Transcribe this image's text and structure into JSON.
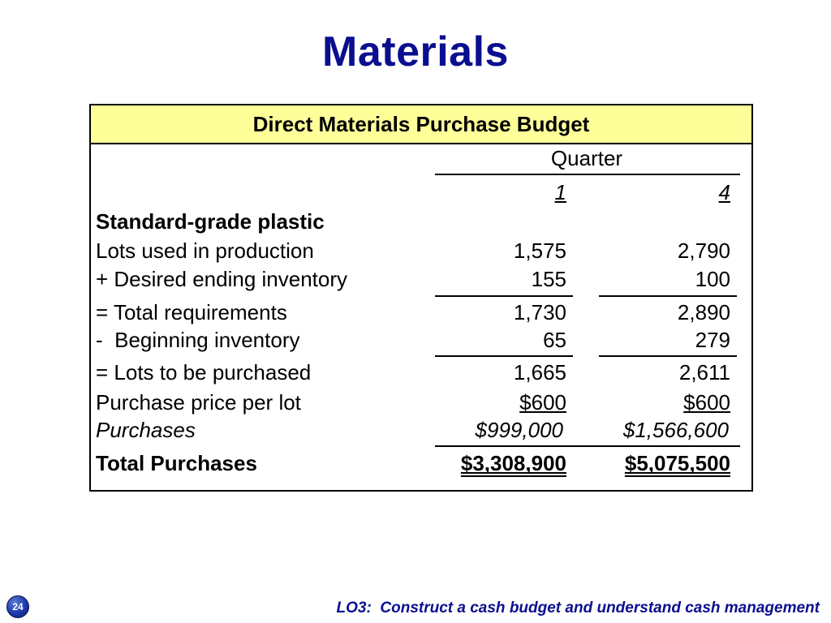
{
  "slide": {
    "title": "Materials",
    "page_number": "24",
    "footer": "LO3:  Construct a cash budget and understand cash management"
  },
  "colors": {
    "title": "#0a0f8f",
    "header_fill": "#ffff99",
    "footer": "#0a0f8f"
  },
  "budget": {
    "header": "Direct Materials Purchase Budget",
    "group_label": "Quarter",
    "columns": [
      "1",
      "4"
    ],
    "section_label": "Standard-grade plastic",
    "rows": [
      {
        "label": "Lots used in production",
        "q1": "1,575",
        "q4": "2,790"
      },
      {
        "label": "+ Desired ending inventory",
        "q1": "155",
        "q4": "100"
      },
      {
        "label": "= Total requirements",
        "q1": "1,730",
        "q4": "2,890"
      },
      {
        "label": "-  Beginning inventory",
        "q1": "65",
        "q4": "279"
      },
      {
        "label": "= Lots to be purchased",
        "q1": "1,665",
        "q4": "2,611"
      },
      {
        "label": "Purchase price per lot",
        "q1": "$600",
        "q4": "$600"
      },
      {
        "label": "Purchases",
        "q1": "$999,000",
        "q4": "$1,566,600"
      },
      {
        "label": "Total Purchases",
        "q1": "$3,308,900",
        "q4": "$5,075,500"
      }
    ]
  }
}
